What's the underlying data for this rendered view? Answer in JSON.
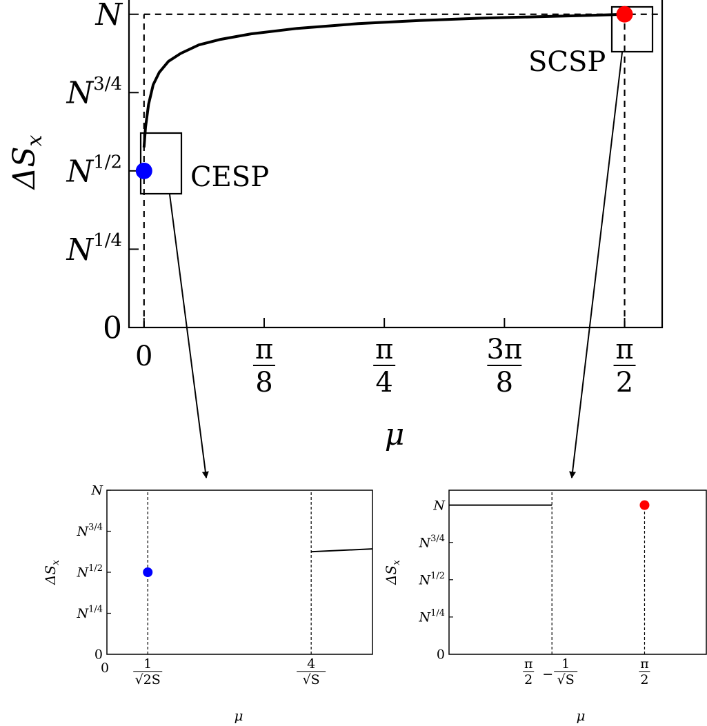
{
  "colors": {
    "axis": "#000000",
    "curve": "#000000",
    "cesp_point": "#0000ff",
    "scsp_point": "#ff0000"
  },
  "chart_data": [
    {
      "id": "main",
      "type": "line",
      "title": "",
      "xlabel": "μ",
      "ylabel": "ΔS",
      "ylabel_sub": "x",
      "xlim": [
        -0.0491,
        1.6936
      ],
      "x_ticks": [
        {
          "value": 0,
          "num": "0",
          "den": ""
        },
        {
          "value": 0.3927,
          "num": "π",
          "den": "8"
        },
        {
          "value": 0.7854,
          "num": "π",
          "den": "4"
        },
        {
          "value": 1.1781,
          "num": "3π",
          "den": "8"
        },
        {
          "value": 1.5708,
          "num": "π",
          "den": "2"
        }
      ],
      "y_ticks": [
        {
          "value": 0,
          "base": "0",
          "exp": ""
        },
        {
          "value": 1,
          "base": "N",
          "exp": "1/4"
        },
        {
          "value": 2,
          "base": "N",
          "exp": "1/2"
        },
        {
          "value": 3,
          "base": "N",
          "exp": "3/4"
        },
        {
          "value": 4,
          "base": "N",
          "exp": ""
        }
      ],
      "ylim": [
        0,
        4.2
      ],
      "grid": false,
      "series": [
        {
          "kind": "curve",
          "x": [
            0,
            0.005,
            0.015,
            0.03,
            0.05,
            0.08,
            0.12,
            0.18,
            0.25,
            0.35,
            0.5,
            0.7,
            0.9,
            1.1,
            1.3,
            1.45,
            1.5708
          ],
          "y": [
            2.3,
            2.56,
            2.85,
            3.1,
            3.26,
            3.4,
            3.5,
            3.61,
            3.68,
            3.75,
            3.82,
            3.88,
            3.92,
            3.95,
            3.97,
            3.985,
            4.0
          ]
        }
      ],
      "points": [
        {
          "label": "CESP",
          "x": 0,
          "y": 2,
          "color": "#0000ff"
        },
        {
          "label": "SCSP",
          "x": 1.5708,
          "y": 4,
          "color": "#ff0000"
        }
      ],
      "reference_lines": [
        {
          "orientation": "vertical",
          "x": 0,
          "y_to": 4,
          "style": "dashed"
        },
        {
          "orientation": "horizontal",
          "y": 4,
          "x_from": 0,
          "style": "dashed"
        },
        {
          "orientation": "vertical",
          "x": 1.5708,
          "y_to": 4,
          "style": "dashed"
        }
      ],
      "annotations": [
        {
          "text": "CESP",
          "anchor": "point-cesp"
        },
        {
          "text": "SCSP",
          "anchor": "point-scsp"
        }
      ]
    },
    {
      "id": "inset-cesp",
      "type": "line",
      "title": "",
      "xlabel": "μ",
      "ylabel": "ΔS",
      "ylabel_sub": "x",
      "origin_label": "0",
      "xlim": [
        0,
        6.5
      ],
      "ylim": [
        0,
        4
      ],
      "x_ticks": [
        {
          "value": 1,
          "num": "1",
          "den": "√2S"
        },
        {
          "value": 5,
          "num": "4",
          "den": "√S"
        }
      ],
      "y_ticks": [
        {
          "value": 0,
          "base": "0",
          "exp": ""
        },
        {
          "value": 1,
          "base": "N",
          "exp": "1/4"
        },
        {
          "value": 2,
          "base": "N",
          "exp": "1/2"
        },
        {
          "value": 3,
          "base": "N",
          "exp": "3/4"
        },
        {
          "value": 4,
          "base": "N",
          "exp": ""
        }
      ],
      "series": [
        {
          "kind": "segment",
          "x": [
            5,
            6.5
          ],
          "y": [
            2.5,
            2.57
          ]
        }
      ],
      "points": [
        {
          "x": 1,
          "y": 2,
          "color": "#0000ff"
        }
      ],
      "reference_lines": [
        {
          "orientation": "vertical",
          "x": 1,
          "style": "dashed"
        },
        {
          "orientation": "vertical",
          "x": 5,
          "style": "dashed"
        }
      ]
    },
    {
      "id": "inset-scsp",
      "type": "line",
      "title": "",
      "xlabel": "μ",
      "ylabel": "ΔS",
      "ylabel_sub": "x",
      "xlim": [
        0,
        10
      ],
      "ylim": [
        0,
        4.4
      ],
      "x_ticks": [
        {
          "value": 4,
          "num": "π",
          "den": "2",
          "tail_num": "1",
          "tail_den": "√S"
        },
        {
          "value": 7.6,
          "num": "π",
          "den": "2"
        }
      ],
      "y_ticks": [
        {
          "value": 0,
          "base": "0",
          "exp": ""
        },
        {
          "value": 1,
          "base": "N",
          "exp": "1/4"
        },
        {
          "value": 2,
          "base": "N",
          "exp": "1/2"
        },
        {
          "value": 3,
          "base": "N",
          "exp": "3/4"
        },
        {
          "value": 4,
          "base": "N",
          "exp": ""
        }
      ],
      "series": [
        {
          "kind": "segment",
          "x": [
            0,
            4
          ],
          "y": [
            4,
            4
          ]
        }
      ],
      "points": [
        {
          "x": 7.6,
          "y": 4,
          "color": "#ff0000"
        }
      ],
      "reference_lines": [
        {
          "orientation": "vertical",
          "x": 4,
          "style": "dashed"
        },
        {
          "orientation": "vertical",
          "x": 7.6,
          "y_to": 4,
          "style": "dashed"
        }
      ]
    }
  ]
}
